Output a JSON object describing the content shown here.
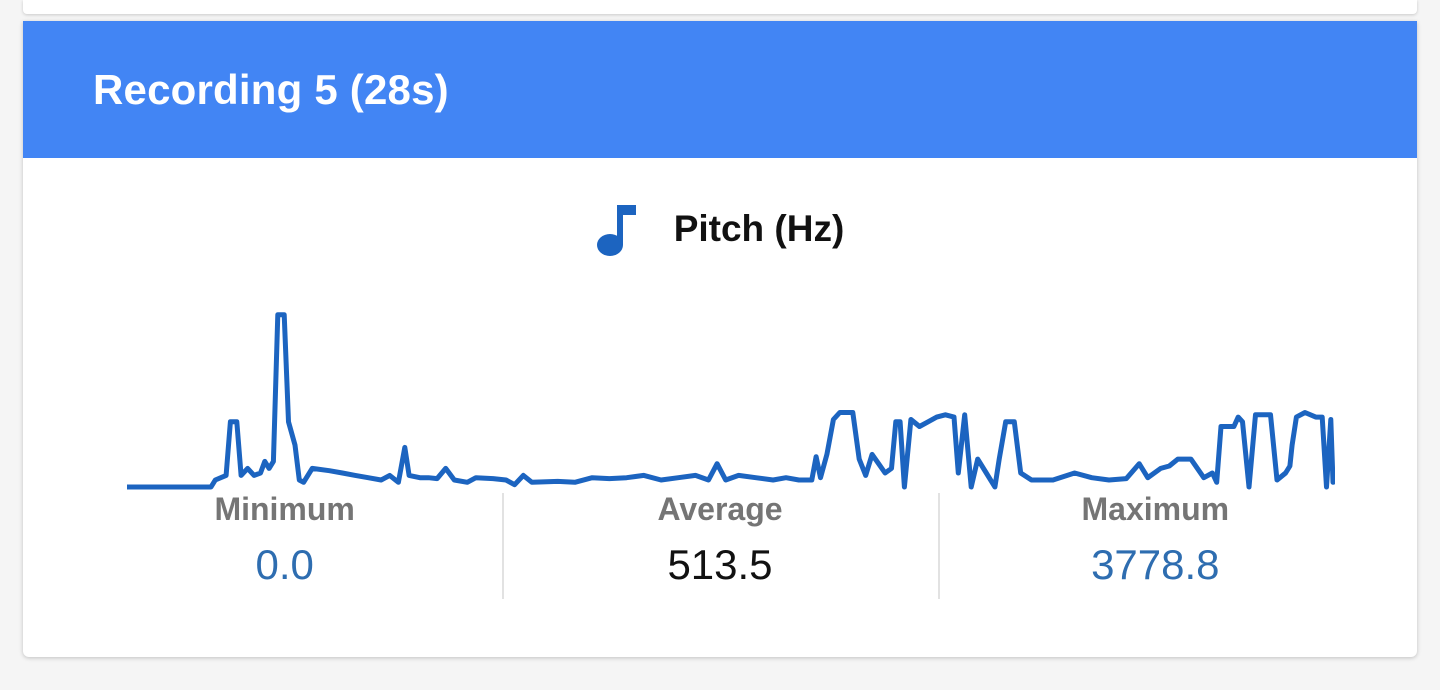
{
  "card": {
    "title": "Recording 5 (28s)"
  },
  "metric": {
    "title": "Pitch (Hz)",
    "icon": "music-note-icon"
  },
  "colors": {
    "header": "#4285f4",
    "line": "#1c64c0",
    "value_link": "#2e6db0",
    "value_plain": "#111111",
    "label": "#757575"
  },
  "stats": [
    {
      "label": "Minimum",
      "value": "0.0",
      "style": "link"
    },
    {
      "label": "Average",
      "value": "513.5",
      "style": "plain"
    },
    {
      "label": "Maximum",
      "value": "3778.8",
      "style": "link"
    }
  ],
  "chart_data": {
    "type": "line",
    "title": "",
    "xlabel": "",
    "ylabel": "",
    "x_range": [
      0,
      28
    ],
    "ylim": [
      0,
      3778.8
    ],
    "grid": false,
    "legend": "none",
    "series": [
      {
        "points": [
          [
            0,
            0
          ],
          [
            1.95,
            0
          ],
          [
            2.05,
            150
          ],
          [
            2.3,
            250
          ],
          [
            2.4,
            1400
          ],
          [
            2.55,
            1400
          ],
          [
            2.65,
            250
          ],
          [
            2.8,
            400
          ],
          [
            2.95,
            250
          ],
          [
            3.1,
            300
          ],
          [
            3.2,
            550
          ],
          [
            3.3,
            400
          ],
          [
            3.4,
            550
          ],
          [
            3.5,
            3700
          ],
          [
            3.65,
            3700
          ],
          [
            3.75,
            1400
          ],
          [
            3.9,
            900
          ],
          [
            4,
            150
          ],
          [
            4.1,
            100
          ],
          [
            4.3,
            400
          ],
          [
            4.7,
            350
          ],
          [
            5,
            300
          ],
          [
            5.3,
            250
          ],
          [
            5.6,
            200
          ],
          [
            5.9,
            150
          ],
          [
            6.1,
            250
          ],
          [
            6.3,
            100
          ],
          [
            6.45,
            850
          ],
          [
            6.55,
            250
          ],
          [
            6.8,
            200
          ],
          [
            7.0,
            200
          ],
          [
            7.2,
            180
          ],
          [
            7.4,
            400
          ],
          [
            7.6,
            150
          ],
          [
            7.9,
            100
          ],
          [
            8.1,
            200
          ],
          [
            8.5,
            180
          ],
          [
            8.8,
            150
          ],
          [
            9.0,
            50
          ],
          [
            9.2,
            250
          ],
          [
            9.4,
            100
          ],
          [
            10,
            120
          ],
          [
            10.4,
            100
          ],
          [
            10.8,
            200
          ],
          [
            11.2,
            180
          ],
          [
            11.6,
            200
          ],
          [
            12.0,
            250
          ],
          [
            12.4,
            150
          ],
          [
            12.8,
            200
          ],
          [
            13.2,
            250
          ],
          [
            13.5,
            150
          ],
          [
            13.7,
            500
          ],
          [
            13.9,
            150
          ],
          [
            14.2,
            250
          ],
          [
            14.6,
            200
          ],
          [
            15.0,
            150
          ],
          [
            15.3,
            200
          ],
          [
            15.6,
            150
          ],
          [
            15.9,
            150
          ],
          [
            16.0,
            650
          ],
          [
            16.1,
            200
          ],
          [
            16.25,
            700
          ],
          [
            16.4,
            1450
          ],
          [
            16.55,
            1600
          ],
          [
            16.85,
            1600
          ],
          [
            17.0,
            600
          ],
          [
            17.15,
            250
          ],
          [
            17.3,
            700
          ],
          [
            17.45,
            500
          ],
          [
            17.6,
            300
          ],
          [
            17.75,
            400
          ],
          [
            17.85,
            1400
          ],
          [
            17.95,
            1400
          ],
          [
            18.05,
            0
          ],
          [
            18.2,
            1450
          ],
          [
            18.4,
            1300
          ],
          [
            18.6,
            1400
          ],
          [
            18.8,
            1500
          ],
          [
            19.0,
            1550
          ],
          [
            19.2,
            1500
          ],
          [
            19.3,
            300
          ],
          [
            19.45,
            1550
          ],
          [
            19.6,
            0
          ],
          [
            19.75,
            600
          ],
          [
            19.95,
            300
          ],
          [
            20.15,
            0
          ],
          [
            20.25,
            600
          ],
          [
            20.4,
            1400
          ],
          [
            20.6,
            1400
          ],
          [
            20.75,
            300
          ],
          [
            21.0,
            150
          ],
          [
            21.5,
            150
          ],
          [
            22.0,
            300
          ],
          [
            22.4,
            200
          ],
          [
            22.8,
            150
          ],
          [
            23.2,
            180
          ],
          [
            23.5,
            500
          ],
          [
            23.7,
            200
          ],
          [
            24.0,
            400
          ],
          [
            24.2,
            450
          ],
          [
            24.4,
            600
          ],
          [
            24.7,
            600
          ],
          [
            25.0,
            200
          ],
          [
            25.2,
            300
          ],
          [
            25.3,
            100
          ],
          [
            25.4,
            1300
          ],
          [
            25.7,
            1300
          ],
          [
            25.8,
            1500
          ],
          [
            25.9,
            1400
          ],
          [
            26.05,
            0
          ],
          [
            26.2,
            1550
          ],
          [
            26.55,
            1550
          ],
          [
            26.7,
            150
          ],
          [
            26.9,
            300
          ],
          [
            27.0,
            450
          ],
          [
            27.05,
            900
          ],
          [
            27.15,
            1500
          ],
          [
            27.35,
            1600
          ],
          [
            27.6,
            1500
          ],
          [
            27.75,
            1500
          ],
          [
            27.85,
            0
          ],
          [
            27.95,
            1450
          ],
          [
            28.0,
            100
          ],
          [
            28.15,
            150
          ],
          [
            28.3,
            150
          ],
          [
            28.45,
            1900
          ],
          [
            28.6,
            150
          ],
          [
            28.8,
            100
          ]
        ]
      }
    ]
  }
}
